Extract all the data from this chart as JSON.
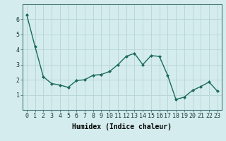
{
  "x": [
    0,
    1,
    2,
    3,
    4,
    5,
    6,
    7,
    8,
    9,
    10,
    11,
    12,
    13,
    14,
    15,
    16,
    17,
    18,
    19,
    20,
    21,
    22,
    23
  ],
  "y": [
    6.3,
    4.2,
    2.2,
    1.75,
    1.65,
    1.5,
    1.95,
    2.0,
    2.3,
    2.35,
    2.55,
    3.0,
    3.55,
    3.75,
    3.0,
    3.6,
    3.55,
    2.3,
    0.7,
    0.85,
    1.3,
    1.55,
    1.85,
    1.25
  ],
  "line_color": "#1a6b5a",
  "marker": "D",
  "markersize": 2.0,
  "linewidth": 1.0,
  "xlabel": "Humidex (Indice chaleur)",
  "xlabel_fontsize": 7,
  "bg_color": "#d4ecee",
  "grid_color": "#b8d4d6",
  "tick_label_fontsize": 6,
  "ylim": [
    0,
    7
  ],
  "yticks": [
    1,
    2,
    3,
    4,
    5,
    6
  ],
  "xlim": [
    -0.5,
    23.5
  ]
}
